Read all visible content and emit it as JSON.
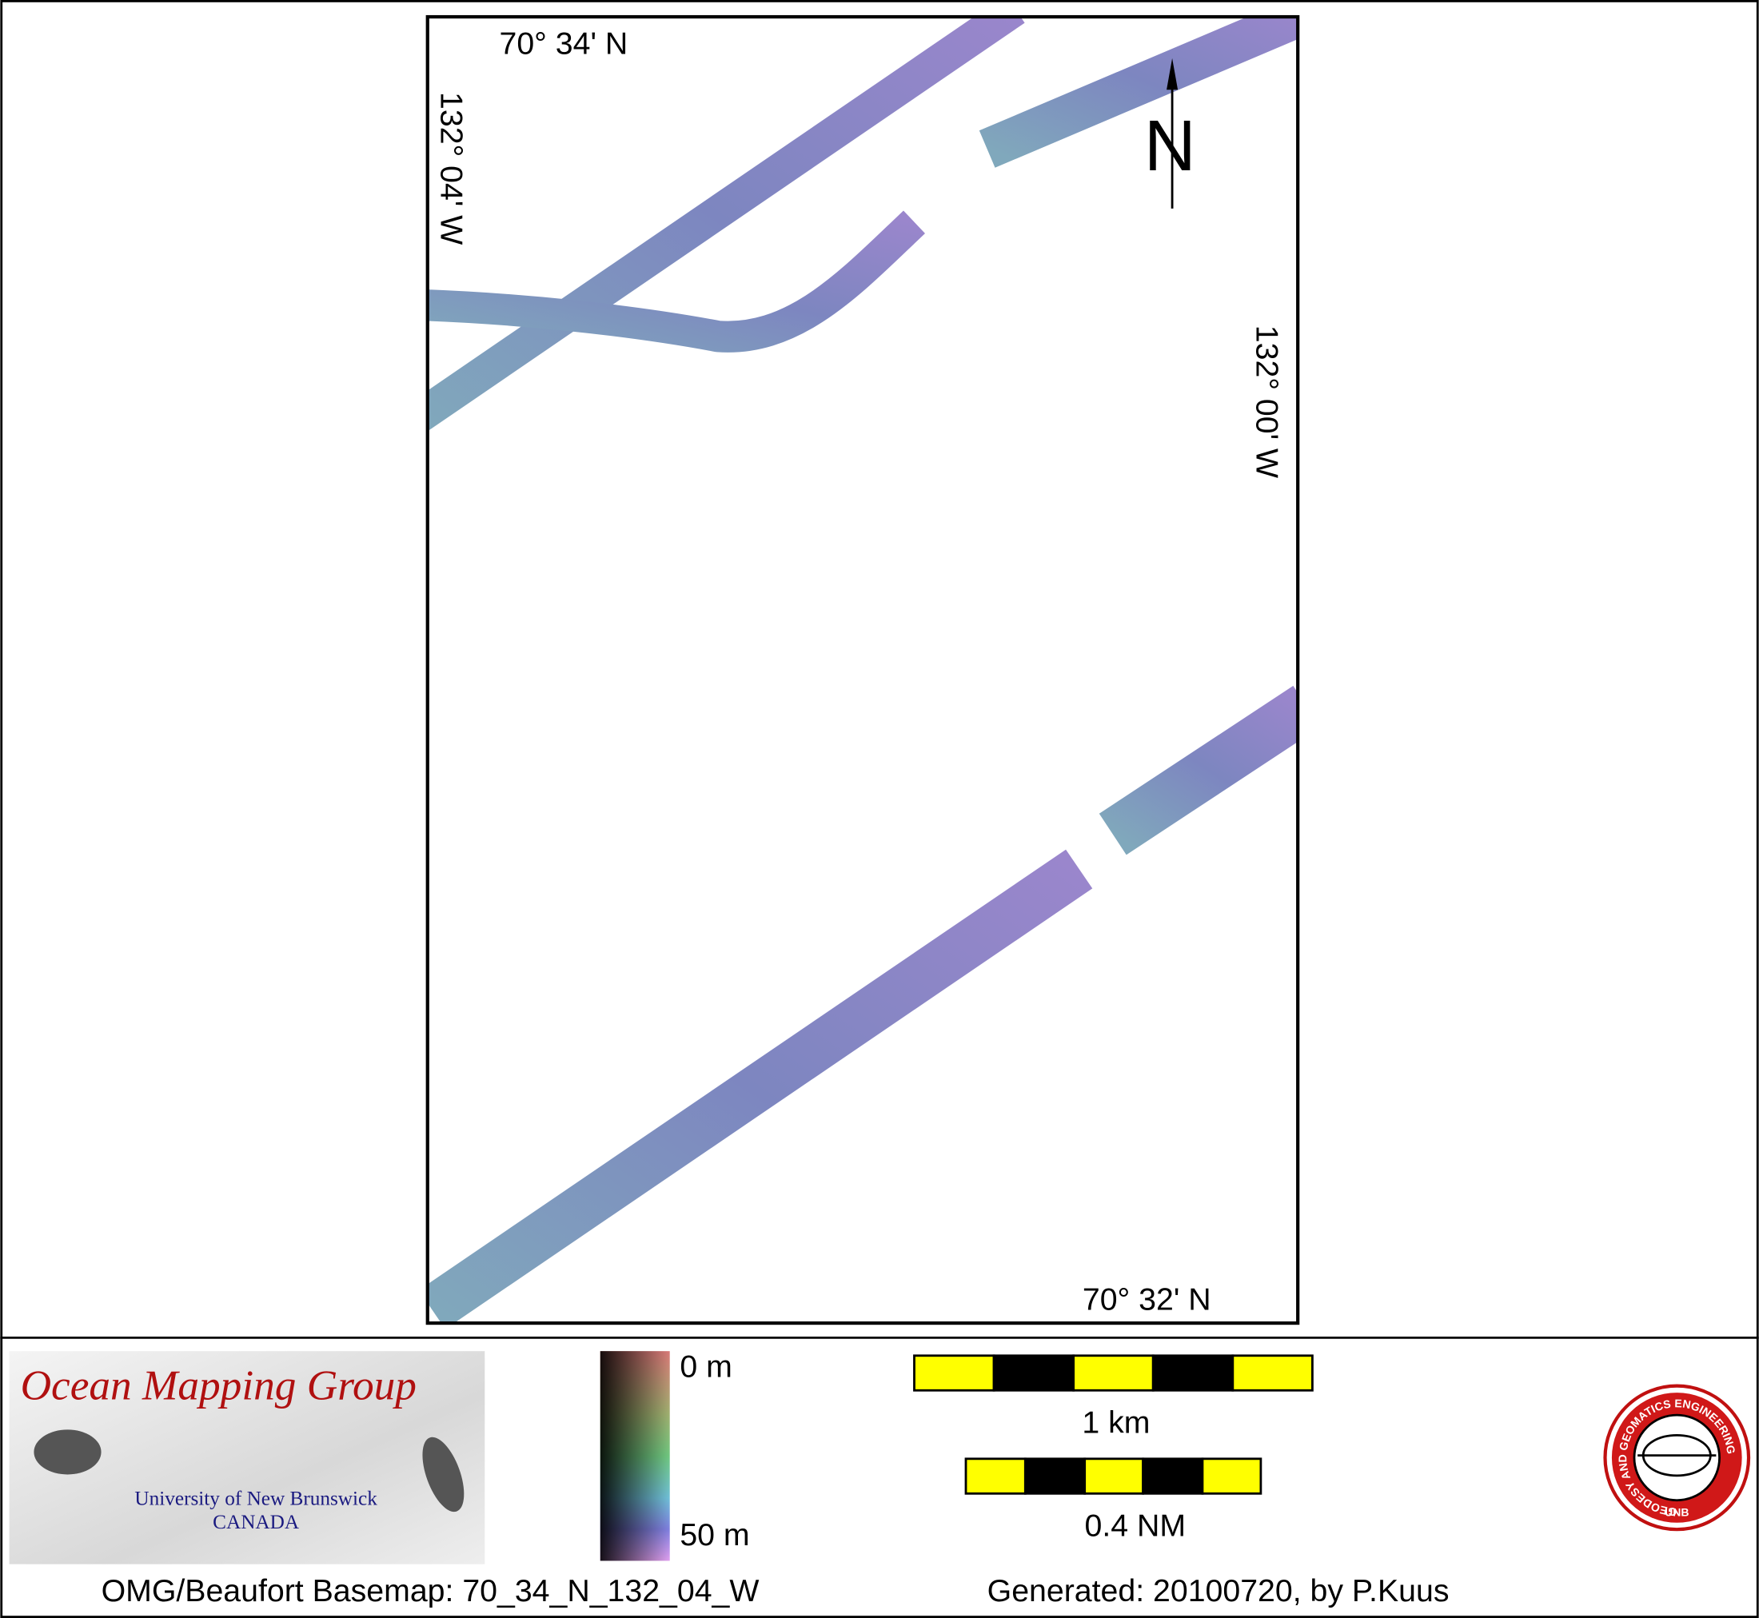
{
  "map": {
    "labels": {
      "lat_top": "70° 34' N",
      "lon_left": "132° 04' W",
      "lat_bottom": "70° 32' N",
      "lon_right": "132° 00' W",
      "north": "N"
    },
    "legend": {
      "top": "0 m",
      "bottom": "50 m"
    },
    "scale_bars": [
      "1 km",
      "0.4 NM"
    ]
  },
  "logo": {
    "title": "Ocean Mapping Group",
    "university": "University of New Brunswick",
    "country": "CANADA"
  },
  "seal": {
    "ring": "GEODESY AND GEOMATICS ENGINEERING",
    "center": "UNB"
  },
  "footer": {
    "basemap": "OMG/Beaufort Basemap: 70_34_N_132_04_W",
    "generated": "Generated: 20100720, by P.Kuus"
  }
}
